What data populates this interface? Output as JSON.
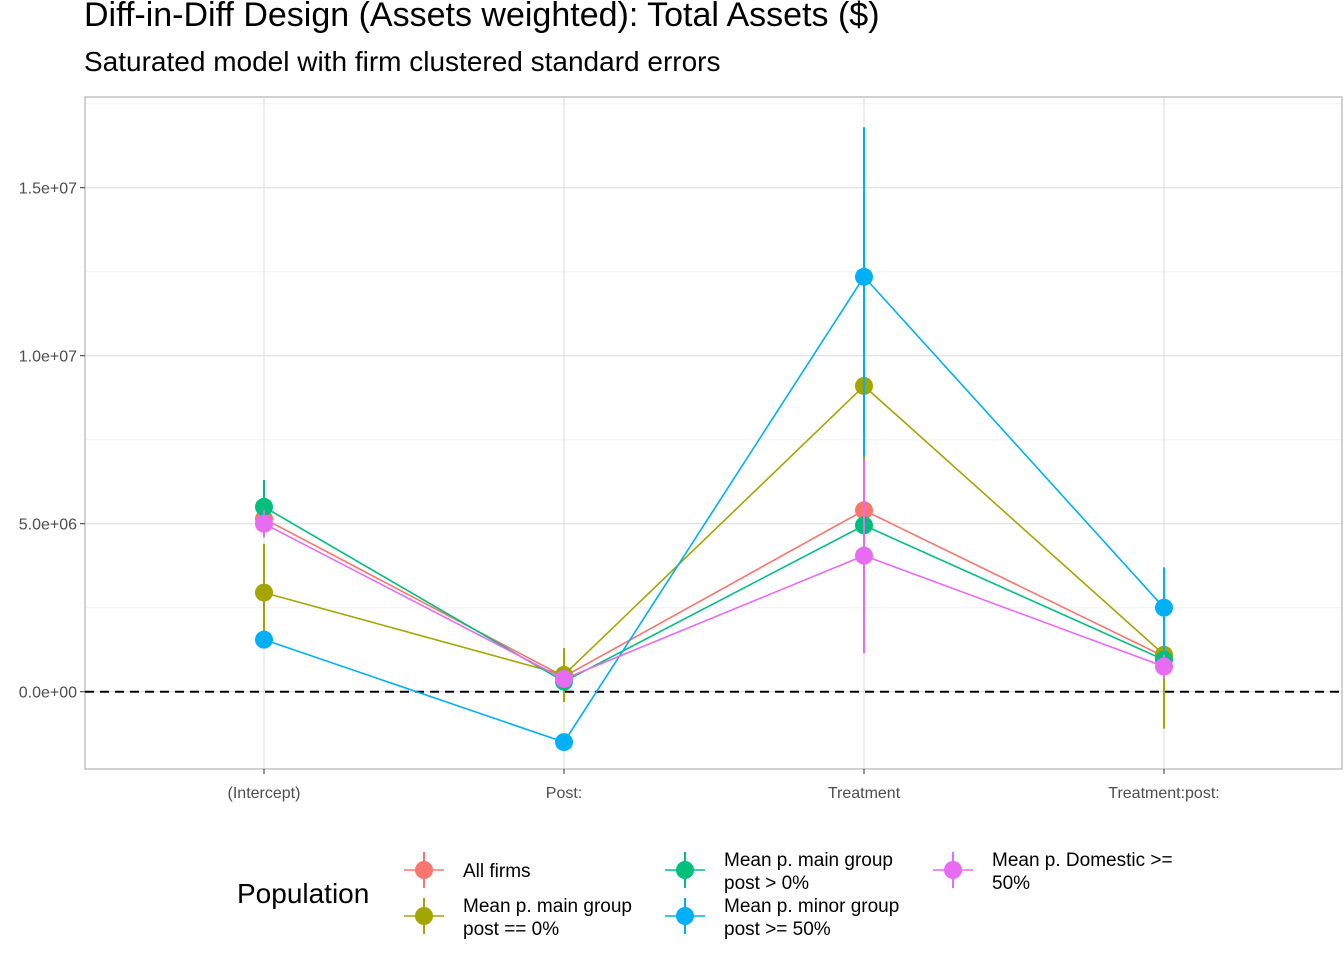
{
  "chart_data": {
    "type": "line",
    "title": "Diff-in-Diff Design (Assets weighted): Total Assets ($)",
    "subtitle": "Saturated model with firm clustered standard errors",
    "categories": [
      "(Intercept)",
      "Post:",
      "Treatment",
      "Treatment:post:"
    ],
    "y_ticks": [
      0,
      5000000,
      10000000,
      15000000
    ],
    "y_tick_labels": [
      "0.0e+00",
      "5.0e+06",
      "1.0e+07",
      "1.5e+07"
    ],
    "ylim": [
      -2300000,
      17700000
    ],
    "reference_line": 0,
    "grid": true,
    "legend": {
      "title": "Population",
      "position": "bottom"
    },
    "series": [
      {
        "name": "All firms",
        "label_lines": [
          "All firms"
        ],
        "color": "#F8766D",
        "values": [
          5150000,
          450000,
          5400000,
          1050000
        ],
        "lower": [
          4600000,
          200000,
          3900000,
          600000
        ],
        "upper": [
          5700000,
          700000,
          6900000,
          1500000
        ]
      },
      {
        "name": "Mean p. main group post == 0%",
        "label_lines": [
          "Mean p. main group",
          "post == 0%"
        ],
        "color": "#A3A500",
        "values": [
          2950000,
          500000,
          9100000,
          1100000
        ],
        "lower": [
          1500000,
          -300000,
          5300000,
          -1100000
        ],
        "upper": [
          4400000,
          1300000,
          7900000,
          3300000
        ]
      },
      {
        "name": "Mean p. main group post > 0%",
        "label_lines": [
          "Mean p. main group",
          "post > 0%"
        ],
        "color": "#00BF7D",
        "values": [
          5500000,
          300000,
          4950000,
          950000
        ],
        "lower": [
          4700000,
          100000,
          4000000,
          600000
        ],
        "upper": [
          6300000,
          500000,
          5900000,
          1300000
        ]
      },
      {
        "name": "Mean p. minor group post >= 50%",
        "label_lines": [
          "Mean p. minor group",
          "post >= 50%"
        ],
        "color": "#00B0F6",
        "values": [
          1550000,
          -1500000,
          12350000,
          2500000
        ],
        "lower": [
          1300000,
          -1700000,
          7000000,
          1200000
        ],
        "upper": [
          1800000,
          -1300000,
          16800000,
          3700000
        ]
      },
      {
        "name": "Mean p. Domestic >= 50%",
        "label_lines": [
          "Mean p. Domestic >=",
          "50%"
        ],
        "color": "#E76BF3",
        "values": [
          5000000,
          380000,
          4050000,
          750000
        ],
        "lower": [
          4600000,
          150000,
          1150000,
          400000
        ],
        "upper": [
          5400000,
          600000,
          6900000,
          1100000
        ]
      }
    ]
  }
}
